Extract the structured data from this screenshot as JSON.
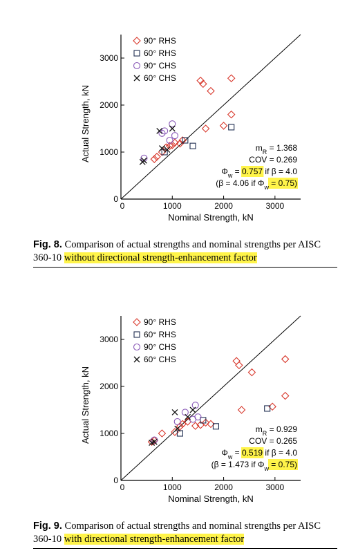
{
  "chart_data": [
    {
      "type": "scatter",
      "figure": "fig8",
      "xlabel": "Nominal Strength, kN",
      "ylabel": "Actual Strength, kN",
      "xlim": [
        0,
        3500
      ],
      "ylim": [
        0,
        3500
      ],
      "xticks": [
        0,
        1000,
        2000,
        3000
      ],
      "yticks": [
        0,
        1000,
        2000,
        3000
      ],
      "grid": false,
      "legend_position": "top-left",
      "reference_line": "y = x",
      "series": [
        {
          "name": "90° RHS",
          "marker": "diamond",
          "color": "#d8372b",
          "points": [
            [
              650,
              850
            ],
            [
              700,
              900
            ],
            [
              800,
              1000
            ],
            [
              880,
              1100
            ],
            [
              950,
              1130
            ],
            [
              1000,
              1150
            ],
            [
              1050,
              1200
            ],
            [
              1150,
              1180
            ],
            [
              1200,
              1250
            ],
            [
              1550,
              2520
            ],
            [
              1600,
              2450
            ],
            [
              1650,
              1500
            ],
            [
              1750,
              2300
            ],
            [
              2000,
              1560
            ],
            [
              2150,
              2570
            ],
            [
              2150,
              1800
            ]
          ]
        },
        {
          "name": "60° RHS",
          "marker": "square",
          "color": "#1f2d50",
          "points": [
            [
              850,
              1000
            ],
            [
              1250,
              1250
            ],
            [
              1400,
              1130
            ],
            [
              2150,
              1530
            ]
          ]
        },
        {
          "name": "90° CHS",
          "marker": "circle",
          "color": "#8a5ab8",
          "points": [
            [
              450,
              870
            ],
            [
              800,
              1400
            ],
            [
              850,
              1450
            ],
            [
              950,
              1250
            ],
            [
              1000,
              1600
            ],
            [
              1050,
              1350
            ]
          ]
        },
        {
          "name": "60° CHS",
          "marker": "x",
          "color": "#111111",
          "points": [
            [
              420,
              790
            ],
            [
              450,
              820
            ],
            [
              750,
              1450
            ],
            [
              800,
              1080
            ],
            [
              900,
              1050
            ],
            [
              1000,
              1500
            ]
          ]
        }
      ],
      "stats": [
        {
          "label": "m",
          "sub": "R",
          "rest": " = 1.368",
          "hl": ""
        },
        {
          "label": "COV = 0.269"
        },
        {
          "label": "Φ",
          "sub": "w",
          "pre_hl": " = ",
          "hl": "0.757",
          "rest": " if β = 4.0"
        },
        {
          "label": "(β = 4.06 if Φ",
          "sub": "w",
          "hl": " = 0.75)"
        }
      ]
    },
    {
      "type": "scatter",
      "figure": "fig9",
      "xlabel": "Nominal Strength, kN",
      "ylabel": "Actual Strength, kN",
      "xlim": [
        0,
        3500
      ],
      "ylim": [
        0,
        3500
      ],
      "xticks": [
        0,
        1000,
        2000,
        3000
      ],
      "yticks": [
        0,
        1000,
        2000,
        3000
      ],
      "grid": false,
      "legend_position": "top-left",
      "reference_line": "y = x",
      "series": [
        {
          "name": "90° RHS",
          "marker": "diamond",
          "color": "#d8372b",
          "points": [
            [
              600,
              820
            ],
            [
              650,
              850
            ],
            [
              800,
              1000
            ],
            [
              1050,
              1030
            ],
            [
              1150,
              1150
            ],
            [
              1200,
              1200
            ],
            [
              1300,
              1250
            ],
            [
              1450,
              1160
            ],
            [
              1550,
              1180
            ],
            [
              1650,
              1230
            ],
            [
              1750,
              1200
            ],
            [
              2250,
              2540
            ],
            [
              2300,
              2450
            ],
            [
              2350,
              1500
            ],
            [
              2550,
              2300
            ],
            [
              2950,
              1570
            ],
            [
              3200,
              2580
            ],
            [
              3200,
              1800
            ]
          ]
        },
        {
          "name": "60° RHS",
          "marker": "square",
          "color": "#1f2d50",
          "points": [
            [
              1150,
              1000
            ],
            [
              1600,
              1280
            ],
            [
              1850,
              1150
            ],
            [
              2850,
              1530
            ]
          ]
        },
        {
          "name": "90° CHS",
          "marker": "circle",
          "color": "#8a5ab8",
          "points": [
            [
              650,
              860
            ],
            [
              1100,
              1250
            ],
            [
              1250,
              1450
            ],
            [
              1400,
              1300
            ],
            [
              1450,
              1600
            ],
            [
              1500,
              1350
            ]
          ]
        },
        {
          "name": "60° CHS",
          "marker": "x",
          "color": "#111111",
          "points": [
            [
              600,
              800
            ],
            [
              650,
              820
            ],
            [
              1050,
              1450
            ],
            [
              1100,
              1100
            ],
            [
              1300,
              1350
            ],
            [
              1400,
              1500
            ]
          ]
        }
      ],
      "stats": [
        {
          "label": "m",
          "sub": "R",
          "rest": " = 0.929",
          "hl": ""
        },
        {
          "label": "COV = 0.265"
        },
        {
          "label": "Φ",
          "sub": "w",
          "pre_hl": " = ",
          "hl": "0.519",
          "rest": " if β = 4.0"
        },
        {
          "label": "(β = 1.473 if Φ",
          "sub": "w",
          "hl": " = 0.75)"
        }
      ]
    }
  ],
  "captions": {
    "fig8": {
      "label": "Fig. 8.",
      "text_plain": " Comparison of actual strengths and nominal strengths per AISC 360-10 ",
      "text_highlight": "without directional strength-enhancement factor"
    },
    "fig9": {
      "label": "Fig. 9.",
      "text_plain": " Comparison of actual strengths and nominal strengths per AISC 360-10 ",
      "text_highlight": "with directional strength-enhancement factor"
    }
  },
  "colors": {
    "highlight": "#fff44a",
    "axis": "#000000"
  }
}
